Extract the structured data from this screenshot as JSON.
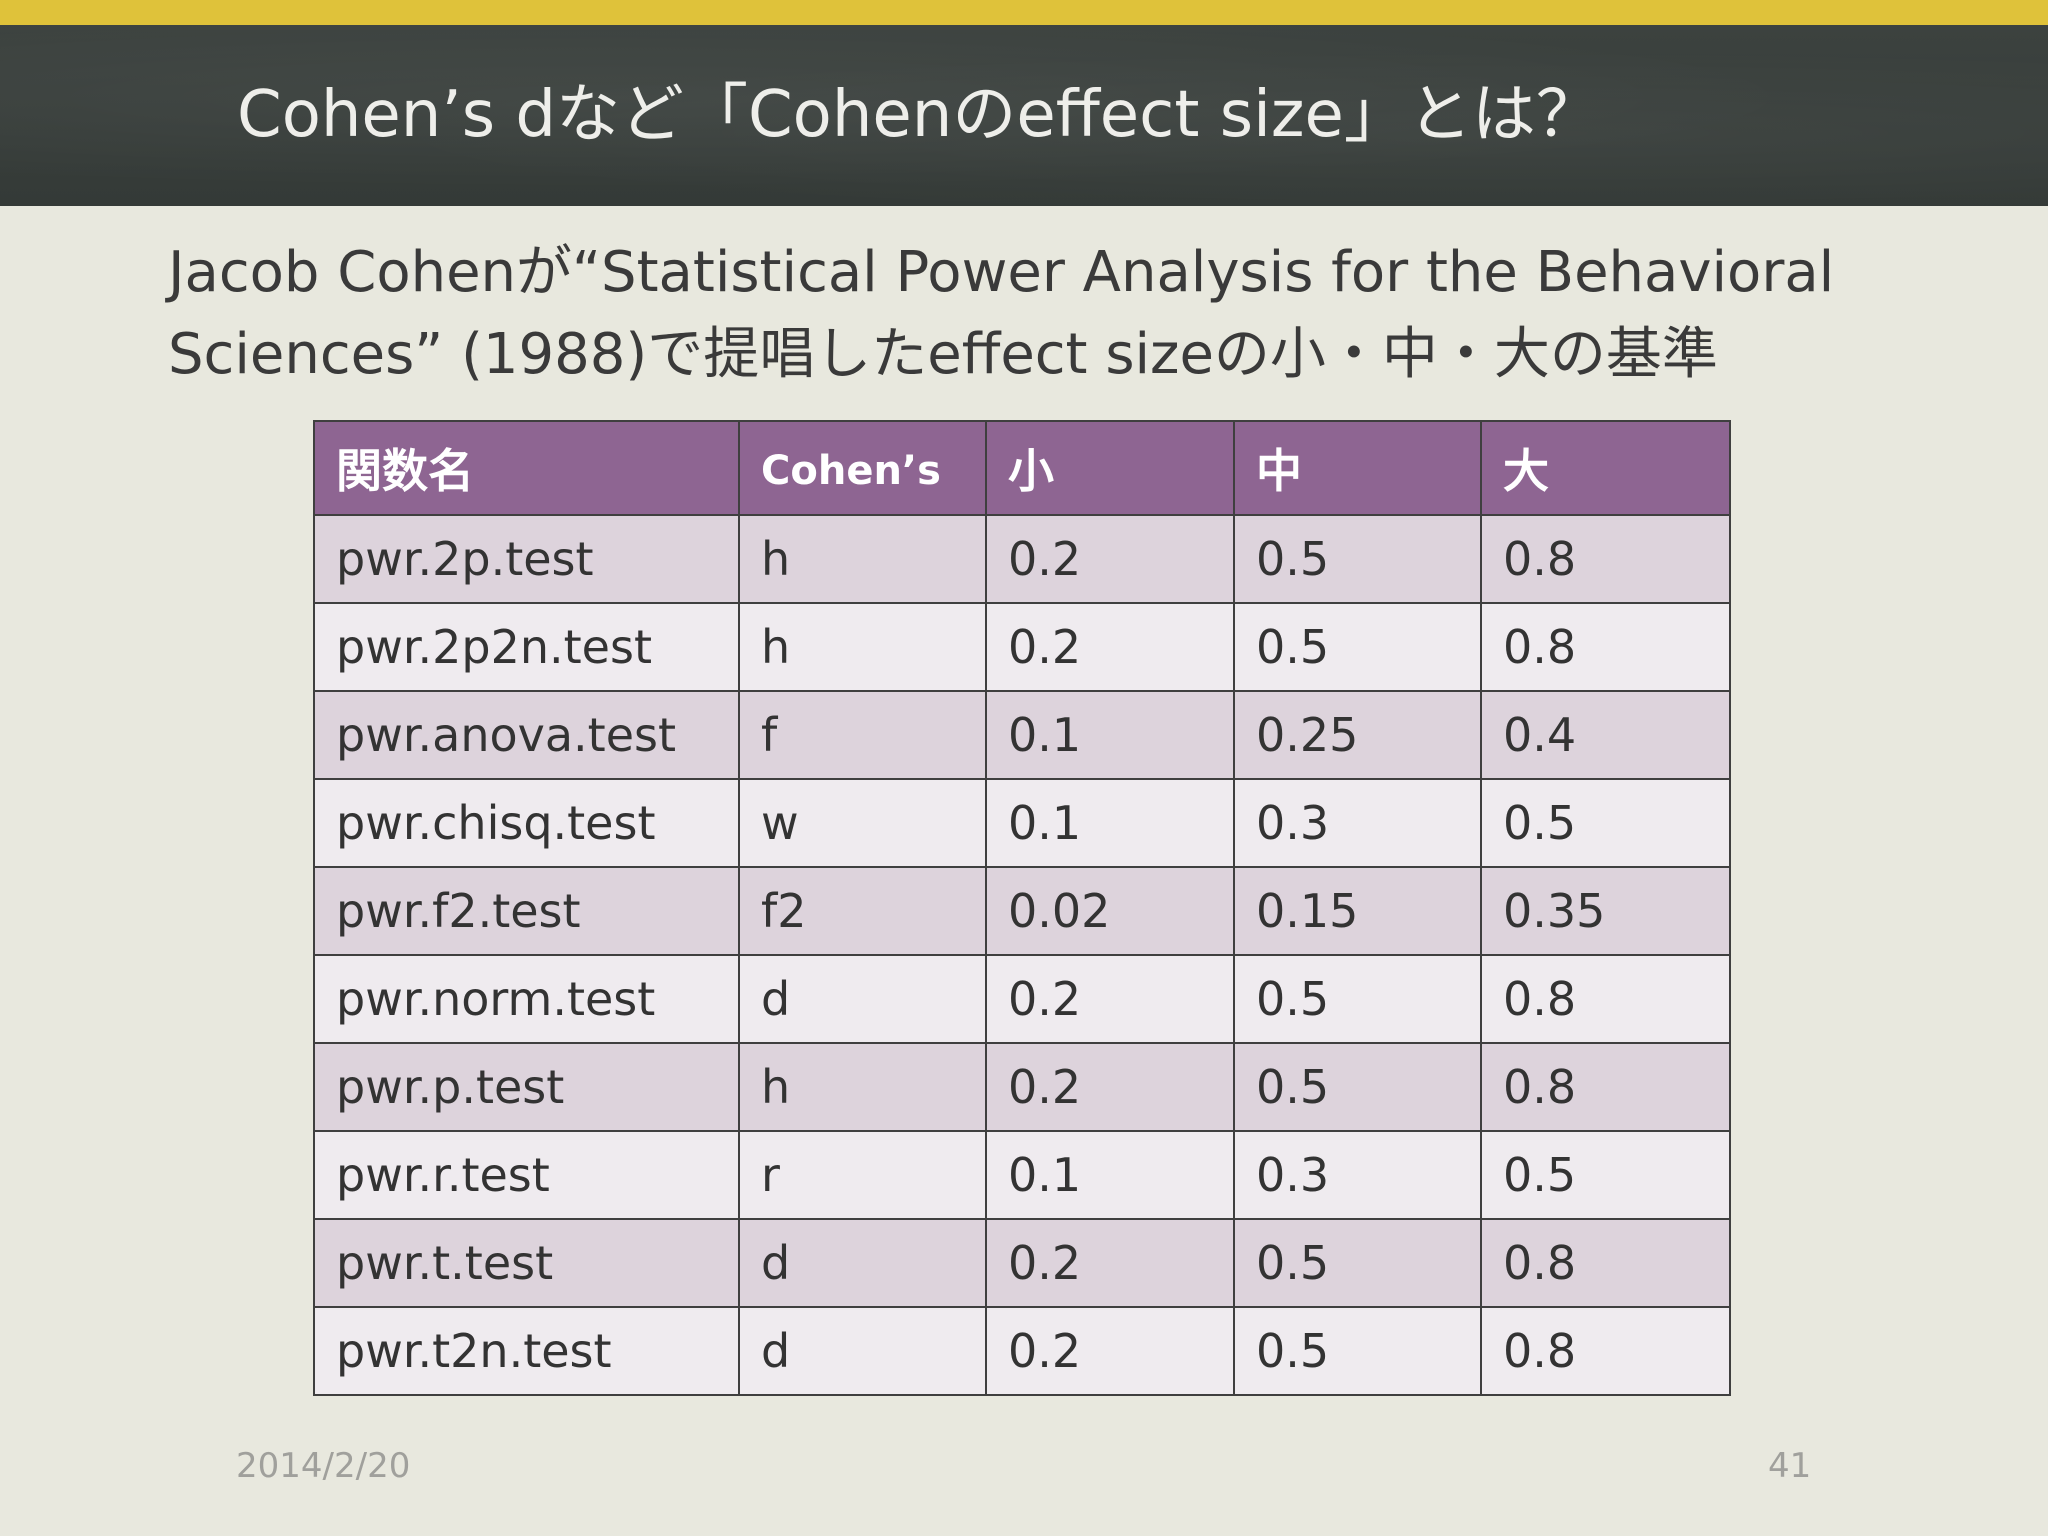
{
  "slide": {
    "title": "Cohen’s dなど「Cohenのeffect size」とは？",
    "subtitle_line1": "Jacob Cohenが“Statistical Power Analysis for the Behavioral",
    "subtitle_line2": "Sciences” (1988)で提唱したeffect sizeの小・中・大の基準",
    "footer_date": "2014/2/20",
    "page_number": "41"
  },
  "colors": {
    "accent_bar": "#dfc23a",
    "title_band": "#373d3a",
    "table_header": "#8e6592",
    "row_odd": "#ddd3dc",
    "row_even": "#efebef"
  },
  "table": {
    "headers": [
      "関数名",
      "Cohen’s",
      "小",
      "中",
      "大"
    ],
    "rows": [
      [
        "pwr.2p.test",
        "h",
        "0.2",
        "0.5",
        "0.8"
      ],
      [
        "pwr.2p2n.test",
        "h",
        "0.2",
        "0.5",
        "0.8"
      ],
      [
        "pwr.anova.test",
        "f",
        "0.1",
        "0.25",
        "0.4"
      ],
      [
        "pwr.chisq.test",
        "w",
        "0.1",
        "0.3",
        "0.5"
      ],
      [
        "pwr.f2.test",
        "f2",
        "0.02",
        "0.15",
        "0.35"
      ],
      [
        "pwr.norm.test",
        "d",
        "0.2",
        "0.5",
        "0.8"
      ],
      [
        "pwr.p.test",
        "h",
        "0.2",
        "0.5",
        "0.8"
      ],
      [
        "pwr.r.test",
        "r",
        "0.1",
        "0.3",
        "0.5"
      ],
      [
        "pwr.t.test",
        "d",
        "0.2",
        "0.5",
        "0.8"
      ],
      [
        "pwr.t2n.test",
        "d",
        "0.2",
        "0.5",
        "0.8"
      ]
    ]
  }
}
